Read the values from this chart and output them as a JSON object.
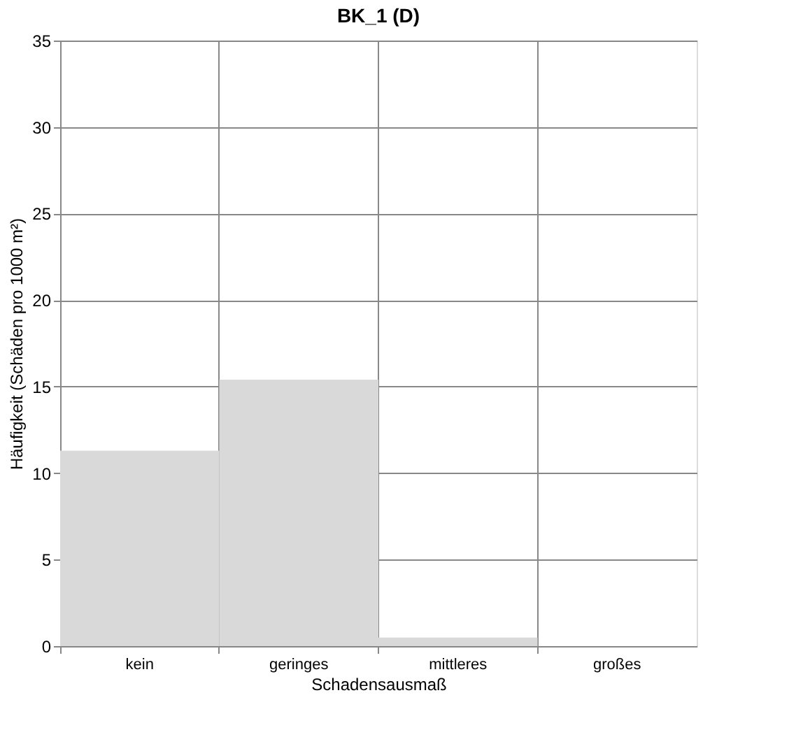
{
  "chart_data": {
    "type": "bar",
    "title": "BK_1 (D)",
    "xlabel": "Schadensausmaß",
    "ylabel": "Häufigkeit (Schäden pro 1000 m²)",
    "categories": [
      "kein",
      "geringes",
      "mittleres",
      "großes"
    ],
    "values": [
      11.3,
      15.4,
      0.5,
      0
    ],
    "color": "#d9d9d9",
    "ylim": [
      0,
      35
    ],
    "yticks": [
      0,
      5,
      10,
      15,
      20,
      25,
      30,
      35
    ],
    "grid": true
  }
}
